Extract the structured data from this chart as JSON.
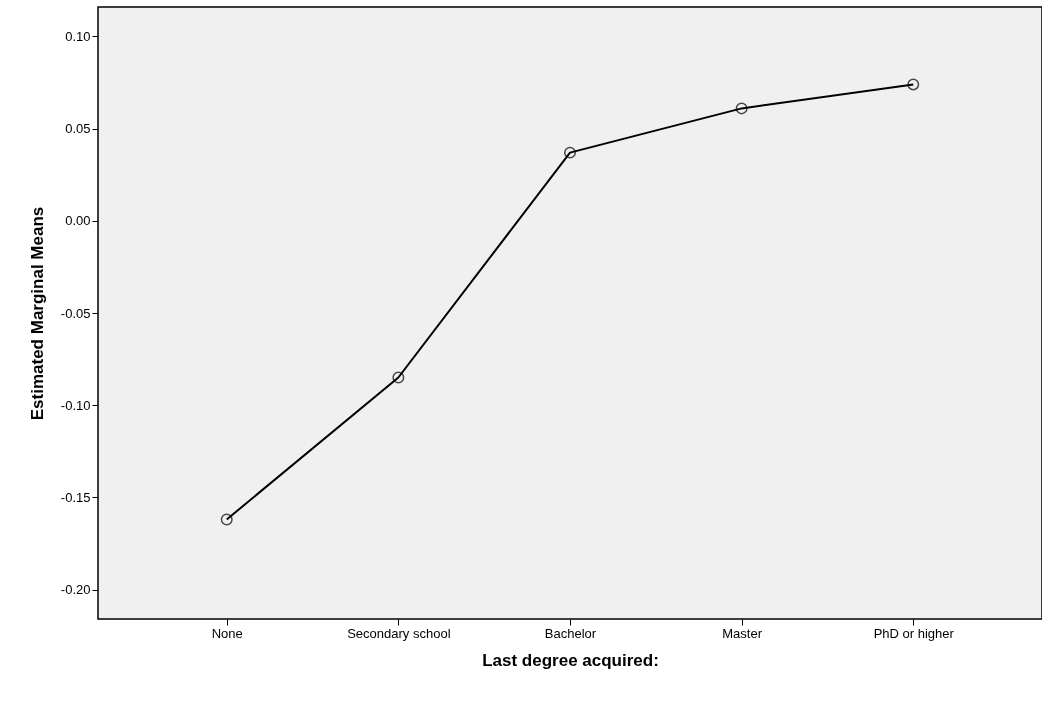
{
  "chart_data": {
    "type": "line",
    "xlabel": "Last degree acquired:",
    "ylabel": "Estimated Marginal Means",
    "categories": [
      "None",
      "Secondary school",
      "Bachelor",
      "Master",
      "PhD or higher"
    ],
    "series": [
      {
        "color": "#000000",
        "values": [
          -0.162,
          -0.085,
          0.037,
          0.061,
          0.074
        ]
      }
    ],
    "ylim": [
      -0.216,
      0.116
    ],
    "yticks": [
      {
        "value": -0.2,
        "label": "-0.20"
      },
      {
        "value": -0.15,
        "label": "-0.15"
      },
      {
        "value": -0.1,
        "label": "-0.10"
      },
      {
        "value": -0.05,
        "label": "-0.05"
      },
      {
        "value": 0,
        "label": "0.00"
      },
      {
        "value": 0.05,
        "label": "0.05"
      },
      {
        "value": 0.1,
        "label": "0.10"
      }
    ],
    "grid": false,
    "marker": "circle",
    "line_style": "solid"
  }
}
